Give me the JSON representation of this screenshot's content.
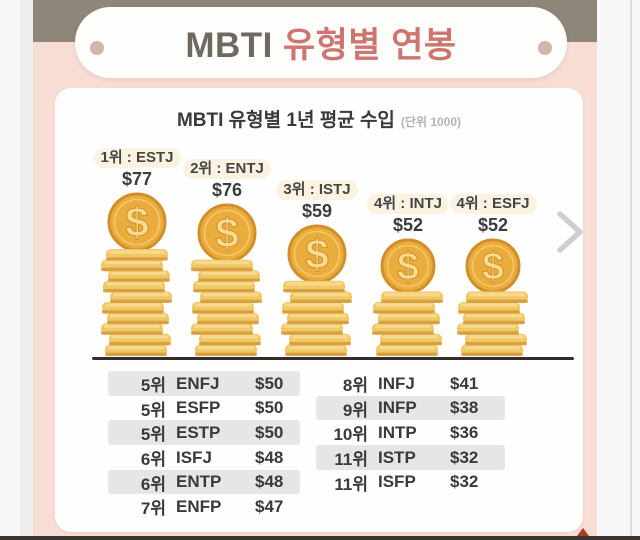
{
  "header": {
    "title_prefix": "MBTI",
    "title_rest": "유형별 연봉"
  },
  "card": {
    "subtitle": "MBTI 유형별 1년 평균 수입",
    "unit_note": "(단위 1000)"
  },
  "chart_data": {
    "type": "bar",
    "title": "MBTI 유형별 1년 평균 수입",
    "unit_note": "(단위 1000)",
    "categories": [
      "ESTJ",
      "ENTJ",
      "ISTJ",
      "INTJ",
      "ESFJ"
    ],
    "values": [
      77,
      76,
      59,
      52,
      52
    ],
    "ylim": [
      0,
      80
    ],
    "legend": false,
    "grid": false,
    "bars": [
      {
        "rank_label": "1위 : ESTJ",
        "value_label": "$77",
        "value": 77,
        "coins": 10,
        "coin_radius": 28
      },
      {
        "rank_label": "2위 : ENTJ",
        "value_label": "$76",
        "value": 76,
        "coins": 9,
        "coin_radius": 28
      },
      {
        "rank_label": "3위 : ISTJ",
        "value_label": "$59",
        "value": 59,
        "coins": 7,
        "coin_radius": 28
      },
      {
        "rank_label": "4위 : INTJ",
        "value_label": "$52",
        "value": 52,
        "coins": 6,
        "coin_radius": 26
      },
      {
        "rank_label": "4위 : ESFJ",
        "value_label": "$52",
        "value": 52,
        "coins": 6,
        "coin_radius": 26
      }
    ]
  },
  "table": {
    "left_rows": [
      {
        "rank": "5위",
        "type": "ENFJ",
        "value": "$50",
        "striped": true
      },
      {
        "rank": "5위",
        "type": "ESFP",
        "value": "$50",
        "striped": false
      },
      {
        "rank": "5위",
        "type": "ESTP",
        "value": "$50",
        "striped": true
      },
      {
        "rank": "6위",
        "type": "ISFJ",
        "value": "$48",
        "striped": false
      },
      {
        "rank": "6위",
        "type": "ENTP",
        "value": "$48",
        "striped": true
      },
      {
        "rank": "7위",
        "type": "ENFP",
        "value": "$47",
        "striped": false
      }
    ],
    "right_rows": [
      {
        "rank": "8위",
        "type": "INFJ",
        "value": "$41",
        "striped": false
      },
      {
        "rank": "9위",
        "type": "INFP",
        "value": "$38",
        "striped": true
      },
      {
        "rank": "10위",
        "type": "INTP",
        "value": "$36",
        "striped": false
      },
      {
        "rank": "11위",
        "type": "ISTP",
        "value": "$32",
        "striped": true
      },
      {
        "rank": "11위",
        "type": "ISFP",
        "value": "$32",
        "striped": false
      }
    ]
  },
  "colors": {
    "top_band": "#8e8679",
    "page_pink": "#f8ddd5",
    "title_prefix": "#6f6962",
    "title_rest": "#ce7570",
    "pill_dot": "#d6b3ab",
    "coin_face": "#ebac3e",
    "coin_edge": "#d18f2c",
    "coin_inner_ring": "#f3c767",
    "coin_symbol": "#f7dc92",
    "coin_body": "#f2c867",
    "coin_highlight": "#f7d98c",
    "coin_shadow": "#cf9638",
    "baseline": "#322d28",
    "stripe": "#e7e6e4",
    "chevron": "#cfcfcf",
    "marker_red": "#ad382c",
    "bottom_bar": "#3b3531"
  }
}
